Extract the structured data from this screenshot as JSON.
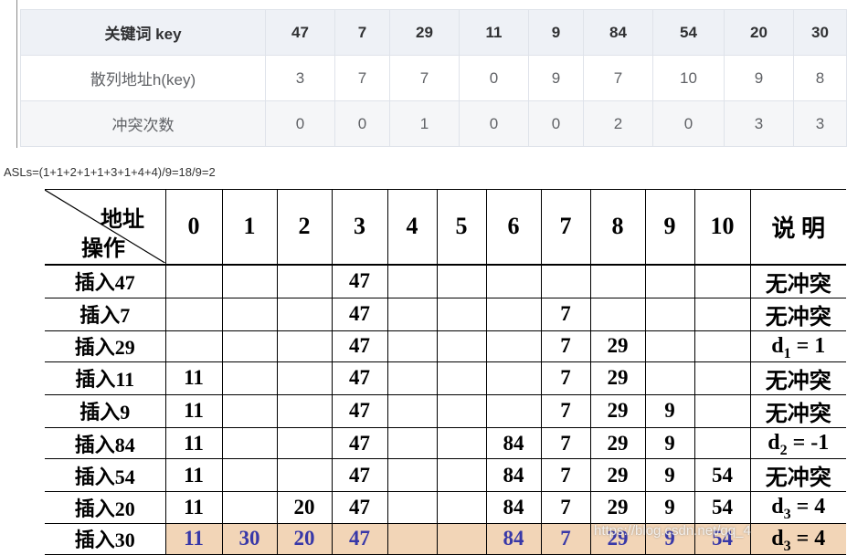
{
  "key_table": {
    "rows": [
      {
        "label": "关键词 key",
        "cells": [
          "47",
          "7",
          "29",
          "11",
          "9",
          "84",
          "54",
          "20",
          "30"
        ]
      },
      {
        "label": "散列地址h(key)",
        "cells": [
          "3",
          "7",
          "7",
          "0",
          "9",
          "7",
          "10",
          "9",
          "8"
        ]
      },
      {
        "label": "冲突次数",
        "cells": [
          "0",
          "0",
          "1",
          "0",
          "0",
          "2",
          "0",
          "3",
          "3"
        ]
      }
    ]
  },
  "asl_formula": "ASLs=(1+1+2+1+1+3+1+4+4)/9=18/9=2",
  "hash_table": {
    "corner_top": "地址",
    "corner_bottom": "操作",
    "addresses": [
      "0",
      "1",
      "2",
      "3",
      "4",
      "5",
      "6",
      "7",
      "8",
      "9",
      "10"
    ],
    "note_header": "说 明",
    "rows": [
      {
        "op": "插入47",
        "slots": [
          "",
          "",
          "",
          "47",
          "",
          "",
          "",
          "",
          "",
          "",
          ""
        ],
        "note": {
          "text": "无冲突"
        }
      },
      {
        "op": "插入7",
        "slots": [
          "",
          "",
          "",
          "47",
          "",
          "",
          "",
          "7",
          "",
          "",
          ""
        ],
        "note": {
          "text": "无冲突"
        }
      },
      {
        "op": "插入29",
        "slots": [
          "",
          "",
          "",
          "47",
          "",
          "",
          "",
          "7",
          "29",
          "",
          ""
        ],
        "note": {
          "text": "d",
          "sub": "1",
          "tail": " = 1"
        }
      },
      {
        "op": "插入11",
        "slots": [
          "11",
          "",
          "",
          "47",
          "",
          "",
          "",
          "7",
          "29",
          "",
          ""
        ],
        "note": {
          "text": "无冲突"
        }
      },
      {
        "op": "插入9",
        "slots": [
          "11",
          "",
          "",
          "47",
          "",
          "",
          "",
          "7",
          "29",
          "9",
          ""
        ],
        "note": {
          "text": "无冲突"
        }
      },
      {
        "op": "插入84",
        "slots": [
          "11",
          "",
          "",
          "47",
          "",
          "",
          "84",
          "7",
          "29",
          "9",
          ""
        ],
        "note": {
          "text": "d",
          "sub": "2",
          "tail": " = -1"
        }
      },
      {
        "op": "插入54",
        "slots": [
          "11",
          "",
          "",
          "47",
          "",
          "",
          "84",
          "7",
          "29",
          "9",
          "54"
        ],
        "note": {
          "text": "无冲突"
        }
      },
      {
        "op": "插入20",
        "slots": [
          "11",
          "",
          "20",
          "47",
          "",
          "",
          "84",
          "7",
          "29",
          "9",
          "54"
        ],
        "note": {
          "text": "d",
          "sub": "3",
          "tail": " = 4"
        }
      },
      {
        "op": "插入30",
        "slots": [
          "11",
          "30",
          "20",
          "47",
          "",
          "",
          "84",
          "7",
          "29",
          "9",
          "54"
        ],
        "note": {
          "text": "d",
          "sub": "3",
          "tail": " = 4"
        },
        "highlight": true
      }
    ]
  },
  "colors": {
    "key_header_bg": "#eef1f6",
    "key_stripe_bg": "#f5f6f8",
    "highlight_bg": "#f2d5b7",
    "highlight_text": "#3838a8"
  },
  "watermark": "https://blog.csdn.net/qq_4"
}
